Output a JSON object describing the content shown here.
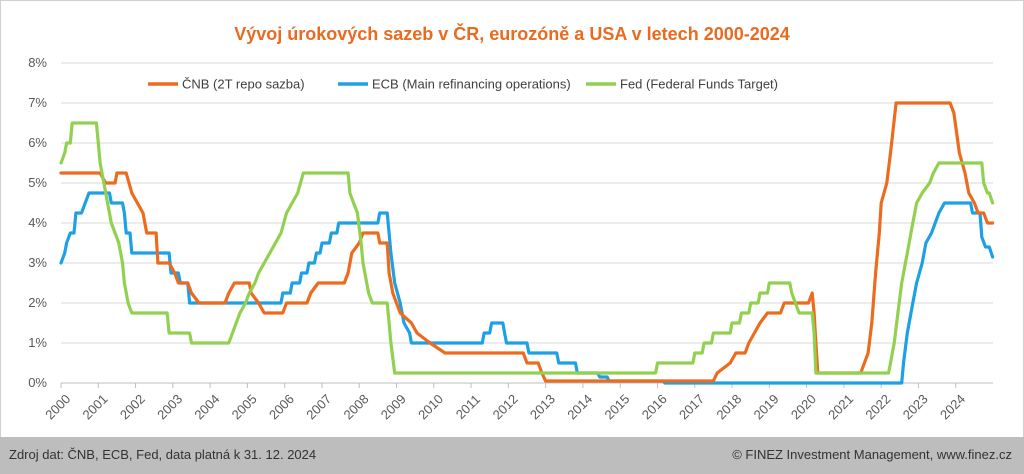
{
  "chart_data": {
    "type": "line",
    "title": "Vývoj úrokových sazeb v ČR, eurozóně a USA v letech 2000-2024",
    "xlabel": "",
    "ylabel": "",
    "xlim": [
      2000,
      2025
    ],
    "ylim": [
      0,
      8
    ],
    "y_ticks": [
      "0%",
      "1%",
      "2%",
      "3%",
      "4%",
      "5%",
      "6%",
      "7%",
      "8%"
    ],
    "x_ticks": [
      "2000",
      "2001",
      "2002",
      "2003",
      "2004",
      "2005",
      "2006",
      "2007",
      "2008",
      "2009",
      "2010",
      "2011",
      "2012",
      "2013",
      "2014",
      "2015",
      "2016",
      "2017",
      "2018",
      "2019",
      "2020",
      "2021",
      "2022",
      "2023",
      "2024"
    ],
    "grid": "horizontal",
    "legend_position": "top",
    "series": [
      {
        "name": "ČNB (2T repo sazba)",
        "color": "#ed6b1f",
        "points": [
          [
            2000,
            5.25
          ],
          [
            2001.05,
            5.25
          ],
          [
            2001.2,
            5.0
          ],
          [
            2001.45,
            5.0
          ],
          [
            2001.5,
            5.25
          ],
          [
            2001.75,
            5.25
          ],
          [
            2001.9,
            4.75
          ],
          [
            2002.05,
            4.5
          ],
          [
            2002.2,
            4.25
          ],
          [
            2002.3,
            3.75
          ],
          [
            2002.55,
            3.75
          ],
          [
            2002.6,
            3.0
          ],
          [
            2002.9,
            3.0
          ],
          [
            2003.05,
            2.75
          ],
          [
            2003.15,
            2.5
          ],
          [
            2003.4,
            2.5
          ],
          [
            2003.5,
            2.25
          ],
          [
            2003.7,
            2.0
          ],
          [
            2004.4,
            2.0
          ],
          [
            2004.5,
            2.25
          ],
          [
            2004.65,
            2.5
          ],
          [
            2005.05,
            2.5
          ],
          [
            2005.1,
            2.25
          ],
          [
            2005.3,
            2.0
          ],
          [
            2005.45,
            1.75
          ],
          [
            2005.95,
            1.75
          ],
          [
            2006.05,
            2.0
          ],
          [
            2006.6,
            2.0
          ],
          [
            2006.7,
            2.25
          ],
          [
            2006.9,
            2.5
          ],
          [
            2007.6,
            2.5
          ],
          [
            2007.7,
            2.75
          ],
          [
            2007.8,
            3.25
          ],
          [
            2008.0,
            3.5
          ],
          [
            2008.1,
            3.75
          ],
          [
            2008.5,
            3.75
          ],
          [
            2008.55,
            3.5
          ],
          [
            2008.75,
            3.5
          ],
          [
            2008.8,
            2.75
          ],
          [
            2008.9,
            2.25
          ],
          [
            2009.1,
            1.75
          ],
          [
            2009.4,
            1.5
          ],
          [
            2009.55,
            1.25
          ],
          [
            2009.9,
            1.0
          ],
          [
            2010.3,
            0.75
          ],
          [
            2012.4,
            0.75
          ],
          [
            2012.5,
            0.5
          ],
          [
            2012.8,
            0.5
          ],
          [
            2012.9,
            0.25
          ],
          [
            2013.0,
            0.05
          ],
          [
            2017.5,
            0.05
          ],
          [
            2017.6,
            0.25
          ],
          [
            2017.95,
            0.5
          ],
          [
            2018.1,
            0.75
          ],
          [
            2018.35,
            0.75
          ],
          [
            2018.45,
            1.0
          ],
          [
            2018.6,
            1.25
          ],
          [
            2018.75,
            1.5
          ],
          [
            2018.95,
            1.75
          ],
          [
            2019.3,
            1.75
          ],
          [
            2019.4,
            2.0
          ],
          [
            2020.05,
            2.0
          ],
          [
            2020.15,
            2.25
          ],
          [
            2020.2,
            1.75
          ],
          [
            2020.25,
            1.0
          ],
          [
            2020.3,
            0.25
          ],
          [
            2021.45,
            0.25
          ],
          [
            2021.55,
            0.5
          ],
          [
            2021.65,
            0.75
          ],
          [
            2021.75,
            1.5
          ],
          [
            2021.85,
            2.75
          ],
          [
            2021.95,
            3.75
          ],
          [
            2022.0,
            4.5
          ],
          [
            2022.15,
            5.0
          ],
          [
            2022.25,
            5.75
          ],
          [
            2022.4,
            7.0
          ],
          [
            2023.85,
            7.0
          ],
          [
            2023.95,
            6.75
          ],
          [
            2024.1,
            5.75
          ],
          [
            2024.25,
            5.25
          ],
          [
            2024.35,
            4.75
          ],
          [
            2024.5,
            4.5
          ],
          [
            2024.6,
            4.25
          ],
          [
            2024.75,
            4.25
          ],
          [
            2024.85,
            4.0
          ],
          [
            2024.99,
            4.0
          ]
        ]
      },
      {
        "name": "ECB (Main refinancing operations)",
        "color": "#1ea0e6",
        "points": [
          [
            2000,
            3.0
          ],
          [
            2000.1,
            3.25
          ],
          [
            2000.15,
            3.5
          ],
          [
            2000.25,
            3.75
          ],
          [
            2000.35,
            3.75
          ],
          [
            2000.4,
            4.25
          ],
          [
            2000.55,
            4.25
          ],
          [
            2000.65,
            4.5
          ],
          [
            2000.75,
            4.75
          ],
          [
            2001.3,
            4.75
          ],
          [
            2001.35,
            4.5
          ],
          [
            2001.65,
            4.5
          ],
          [
            2001.7,
            4.25
          ],
          [
            2001.75,
            3.75
          ],
          [
            2001.85,
            3.75
          ],
          [
            2001.9,
            3.25
          ],
          [
            2002.9,
            3.25
          ],
          [
            2002.95,
            2.75
          ],
          [
            2003.15,
            2.75
          ],
          [
            2003.2,
            2.5
          ],
          [
            2003.4,
            2.5
          ],
          [
            2003.45,
            2.0
          ],
          [
            2005.9,
            2.0
          ],
          [
            2005.95,
            2.25
          ],
          [
            2006.15,
            2.25
          ],
          [
            2006.2,
            2.5
          ],
          [
            2006.4,
            2.5
          ],
          [
            2006.45,
            2.75
          ],
          [
            2006.6,
            2.75
          ],
          [
            2006.65,
            3.0
          ],
          [
            2006.8,
            3.0
          ],
          [
            2006.85,
            3.25
          ],
          [
            2006.95,
            3.25
          ],
          [
            2007.0,
            3.5
          ],
          [
            2007.2,
            3.5
          ],
          [
            2007.25,
            3.75
          ],
          [
            2007.4,
            3.75
          ],
          [
            2007.45,
            4.0
          ],
          [
            2008.5,
            4.0
          ],
          [
            2008.55,
            4.25
          ],
          [
            2008.75,
            4.25
          ],
          [
            2008.8,
            3.75
          ],
          [
            2008.85,
            3.25
          ],
          [
            2008.95,
            2.5
          ],
          [
            2009.1,
            2.0
          ],
          [
            2009.2,
            1.5
          ],
          [
            2009.35,
            1.25
          ],
          [
            2009.4,
            1.0
          ],
          [
            2011.3,
            1.0
          ],
          [
            2011.35,
            1.25
          ],
          [
            2011.5,
            1.25
          ],
          [
            2011.55,
            1.5
          ],
          [
            2011.85,
            1.5
          ],
          [
            2011.9,
            1.25
          ],
          [
            2011.95,
            1.0
          ],
          [
            2012.5,
            1.0
          ],
          [
            2012.55,
            0.75
          ],
          [
            2013.3,
            0.75
          ],
          [
            2013.35,
            0.5
          ],
          [
            2013.8,
            0.5
          ],
          [
            2013.85,
            0.25
          ],
          [
            2014.4,
            0.25
          ],
          [
            2014.45,
            0.15
          ],
          [
            2014.65,
            0.15
          ],
          [
            2014.7,
            0.05
          ],
          [
            2016.15,
            0.05
          ],
          [
            2016.2,
            0.0
          ],
          [
            2022.55,
            0.0
          ],
          [
            2022.6,
            0.5
          ],
          [
            2022.7,
            1.25
          ],
          [
            2022.85,
            2.0
          ],
          [
            2022.95,
            2.5
          ],
          [
            2023.1,
            3.0
          ],
          [
            2023.2,
            3.5
          ],
          [
            2023.35,
            3.75
          ],
          [
            2023.45,
            4.0
          ],
          [
            2023.55,
            4.25
          ],
          [
            2023.7,
            4.5
          ],
          [
            2024.4,
            4.5
          ],
          [
            2024.45,
            4.25
          ],
          [
            2024.65,
            4.25
          ],
          [
            2024.7,
            3.65
          ],
          [
            2024.8,
            3.4
          ],
          [
            2024.9,
            3.4
          ],
          [
            2024.99,
            3.15
          ]
        ]
      },
      {
        "name": "Fed (Federal Funds Target)",
        "color": "#92d050",
        "points": [
          [
            2000,
            5.5
          ],
          [
            2000.1,
            5.75
          ],
          [
            2000.15,
            6.0
          ],
          [
            2000.25,
            6.0
          ],
          [
            2000.3,
            6.5
          ],
          [
            2000.95,
            6.5
          ],
          [
            2001.0,
            6.0
          ],
          [
            2001.05,
            5.5
          ],
          [
            2001.15,
            5.0
          ],
          [
            2001.25,
            4.5
          ],
          [
            2001.35,
            4.0
          ],
          [
            2001.45,
            3.75
          ],
          [
            2001.55,
            3.5
          ],
          [
            2001.65,
            3.0
          ],
          [
            2001.7,
            2.5
          ],
          [
            2001.8,
            2.0
          ],
          [
            2001.9,
            1.75
          ],
          [
            2002.85,
            1.75
          ],
          [
            2002.9,
            1.25
          ],
          [
            2003.45,
            1.25
          ],
          [
            2003.5,
            1.0
          ],
          [
            2004.5,
            1.0
          ],
          [
            2004.6,
            1.25
          ],
          [
            2004.7,
            1.5
          ],
          [
            2004.8,
            1.75
          ],
          [
            2004.95,
            2.0
          ],
          [
            2005.05,
            2.25
          ],
          [
            2005.2,
            2.5
          ],
          [
            2005.3,
            2.75
          ],
          [
            2005.45,
            3.0
          ],
          [
            2005.6,
            3.25
          ],
          [
            2005.75,
            3.5
          ],
          [
            2005.9,
            3.75
          ],
          [
            2006.05,
            4.25
          ],
          [
            2006.2,
            4.5
          ],
          [
            2006.35,
            4.75
          ],
          [
            2006.5,
            5.25
          ],
          [
            2007.7,
            5.25
          ],
          [
            2007.75,
            4.75
          ],
          [
            2007.85,
            4.5
          ],
          [
            2007.95,
            4.25
          ],
          [
            2008.05,
            3.5
          ],
          [
            2008.1,
            3.0
          ],
          [
            2008.25,
            2.25
          ],
          [
            2008.35,
            2.0
          ],
          [
            2008.75,
            2.0
          ],
          [
            2008.8,
            1.5
          ],
          [
            2008.85,
            1.0
          ],
          [
            2008.95,
            0.25
          ],
          [
            2015.95,
            0.25
          ],
          [
            2016.0,
            0.5
          ],
          [
            2016.95,
            0.5
          ],
          [
            2017.0,
            0.75
          ],
          [
            2017.2,
            0.75
          ],
          [
            2017.25,
            1.0
          ],
          [
            2017.45,
            1.0
          ],
          [
            2017.5,
            1.25
          ],
          [
            2017.95,
            1.25
          ],
          [
            2018.0,
            1.5
          ],
          [
            2018.2,
            1.5
          ],
          [
            2018.25,
            1.75
          ],
          [
            2018.45,
            1.75
          ],
          [
            2018.5,
            2.0
          ],
          [
            2018.7,
            2.0
          ],
          [
            2018.75,
            2.25
          ],
          [
            2018.95,
            2.25
          ],
          [
            2019.0,
            2.5
          ],
          [
            2019.55,
            2.5
          ],
          [
            2019.6,
            2.25
          ],
          [
            2019.7,
            2.0
          ],
          [
            2019.8,
            1.75
          ],
          [
            2020.15,
            1.75
          ],
          [
            2020.2,
            1.25
          ],
          [
            2020.25,
            0.25
          ],
          [
            2022.2,
            0.25
          ],
          [
            2022.25,
            0.5
          ],
          [
            2022.35,
            1.0
          ],
          [
            2022.45,
            1.75
          ],
          [
            2022.55,
            2.5
          ],
          [
            2022.7,
            3.25
          ],
          [
            2022.85,
            4.0
          ],
          [
            2022.95,
            4.5
          ],
          [
            2023.1,
            4.75
          ],
          [
            2023.3,
            5.0
          ],
          [
            2023.4,
            5.25
          ],
          [
            2023.55,
            5.5
          ],
          [
            2024.7,
            5.5
          ],
          [
            2024.75,
            5.0
          ],
          [
            2024.85,
            4.75
          ],
          [
            2024.9,
            4.75
          ],
          [
            2024.99,
            4.5
          ]
        ]
      }
    ]
  },
  "footer": {
    "source": "Zdroj dat: ČNB, ECB, Fed, data platná k 31. 12. 2024",
    "credit": "© FINEZ Investment Management, www.finez.cz"
  }
}
